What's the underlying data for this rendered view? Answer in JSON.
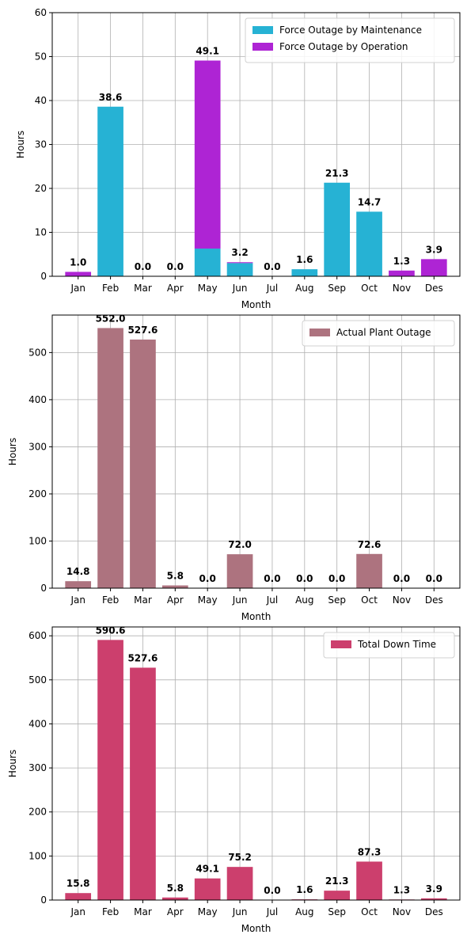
{
  "chart_data": [
    {
      "type": "bar",
      "stacked": true,
      "categories": [
        "Jan",
        "Feb",
        "Mar",
        "Apr",
        "May",
        "Jun",
        "Jul",
        "Aug",
        "Sep",
        "Oct",
        "Nov",
        "Des"
      ],
      "series": [
        {
          "name": "Force Outage by Maintenance",
          "color": "#26b2d4",
          "values": [
            0.0,
            38.6,
            0.0,
            0.0,
            6.3,
            3.0,
            0.0,
            1.6,
            21.3,
            14.7,
            0.0,
            0.0
          ]
        },
        {
          "name": "Force Outage by Operation",
          "color": "#ae24d4",
          "values": [
            1.0,
            0.0,
            0.0,
            0.0,
            42.8,
            0.2,
            0.0,
            0.0,
            0.0,
            0.0,
            1.3,
            3.9
          ]
        }
      ],
      "totals": [
        "1.0",
        "38.6",
        "0.0",
        "0.0",
        "49.1",
        "3.2",
        "0.0",
        "1.6",
        "21.3",
        "14.7",
        "1.3",
        "3.9"
      ],
      "xlabel": "Month",
      "ylabel": "Hours",
      "ylim": [
        0,
        60
      ],
      "yticks": [
        0,
        10,
        20,
        30,
        40,
        50,
        60
      ],
      "grid": true,
      "legend": "top-right"
    },
    {
      "type": "bar",
      "categories": [
        "Jan",
        "Feb",
        "Mar",
        "Apr",
        "May",
        "Jun",
        "Jul",
        "Aug",
        "Sep",
        "Oct",
        "Nov",
        "Des"
      ],
      "series": [
        {
          "name": "Actual Plant Outage",
          "color": "#ad737f",
          "values": [
            14.8,
            552.0,
            527.6,
            5.8,
            0.0,
            72.0,
            0.0,
            0.0,
            0.0,
            72.6,
            0.0,
            0.0
          ]
        }
      ],
      "totals": [
        "14.8",
        "552.0",
        "527.6",
        "5.8",
        "0.0",
        "72.0",
        "0.0",
        "0.0",
        "0.0",
        "72.6",
        "0.0",
        "0.0"
      ],
      "xlabel": "Month",
      "ylabel": "Hours",
      "ylim": [
        0,
        579.6
      ],
      "yticks": [
        0,
        100,
        200,
        300,
        400,
        500
      ],
      "grid": true,
      "legend": "top-right"
    },
    {
      "type": "bar",
      "categories": [
        "Jan",
        "Feb",
        "Mar",
        "Apr",
        "May",
        "Jun",
        "Jul",
        "Aug",
        "Sep",
        "Oct",
        "Nov",
        "Des"
      ],
      "series": [
        {
          "name": "Total Down Time",
          "color": "#cc3f6d",
          "values": [
            15.8,
            590.6,
            527.6,
            5.8,
            49.1,
            75.2,
            0.0,
            1.6,
            21.3,
            87.3,
            1.3,
            3.9
          ]
        }
      ],
      "totals": [
        "15.8",
        "590.6",
        "527.6",
        "5.8",
        "49.1",
        "75.2",
        "0.0",
        "1.6",
        "21.3",
        "87.3",
        "1.3",
        "3.9"
      ],
      "xlabel": "Month",
      "ylabel": "Hours",
      "ylim": [
        0,
        620.1
      ],
      "yticks": [
        0,
        100,
        200,
        300,
        400,
        500,
        600
      ],
      "grid": true,
      "legend": "top-right"
    }
  ]
}
